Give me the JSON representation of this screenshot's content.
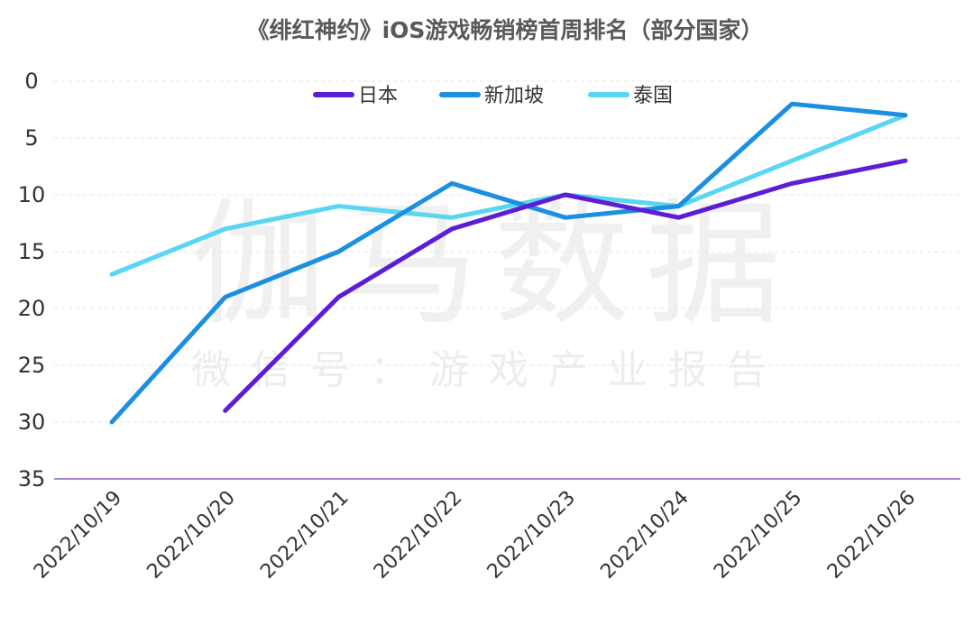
{
  "chart_data": {
    "type": "line",
    "title": "《绯红神约》iOS游戏畅销榜首周排名（部分国家）",
    "categories": [
      "2022/10/19",
      "2022/10/20",
      "2022/10/21",
      "2022/10/22",
      "2022/10/23",
      "2022/10/24",
      "2022/10/25",
      "2022/10/26"
    ],
    "ylim": [
      0,
      35
    ],
    "y_inverted": true,
    "yticks": [
      0,
      5,
      10,
      15,
      20,
      25,
      30,
      35
    ],
    "grid": true,
    "legend_position": "top-center",
    "series": [
      {
        "name": "日本",
        "color": "#5b1ed6",
        "values": [
          null,
          29,
          19,
          13,
          10,
          12,
          9,
          7
        ]
      },
      {
        "name": "新加坡",
        "color": "#1b8fe2",
        "values": [
          30,
          19,
          15,
          9,
          12,
          11,
          2,
          3
        ]
      },
      {
        "name": "泰国",
        "color": "#58d6f2",
        "values": [
          17,
          13,
          11,
          12,
          10,
          11,
          7,
          3
        ]
      }
    ]
  },
  "watermark": {
    "brand": "伽马数据",
    "subtitle": "微信号：游戏产业报告"
  }
}
